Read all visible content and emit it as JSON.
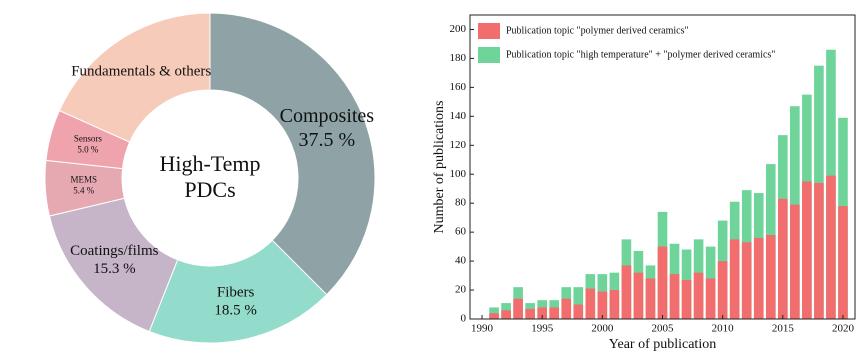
{
  "chart_data": [
    {
      "type": "pie",
      "donut": true,
      "center_text": [
        "High-Temp",
        "PDCs"
      ],
      "categories": [
        "Composites",
        "Fibers",
        "Coatings/films",
        "MEMS",
        "Sensors",
        "Fundamentals & others"
      ],
      "values": [
        37.5,
        18.5,
        15.3,
        5.4,
        5.0,
        18.3
      ],
      "value_labels": [
        "37.5 %",
        "18.5 %",
        "15.3 %",
        "5.4 %",
        "5.0 %",
        null
      ],
      "colors": [
        "#8fa3a6",
        "#93dccb",
        "#c6b4c9",
        "#e7a9b1",
        "#eea3ad",
        "#f6cbb9"
      ]
    },
    {
      "type": "bar",
      "barmode": "overlay",
      "x": [
        1991,
        1992,
        1993,
        1994,
        1995,
        1996,
        1997,
        1998,
        1999,
        2000,
        2001,
        2002,
        2003,
        2004,
        2005,
        2006,
        2007,
        2008,
        2009,
        2010,
        2011,
        2012,
        2013,
        2014,
        2015,
        2016,
        2017,
        2018,
        2019,
        2020
      ],
      "series": [
        {
          "name": "Publication topic \"high temperature\" + \"polymer derived ceramics\"",
          "color": "#6fd49a",
          "values": [
            8,
            11,
            22,
            11,
            13,
            13,
            22,
            22,
            31,
            31,
            32,
            55,
            47,
            37,
            74,
            52,
            48,
            55,
            50,
            68,
            81,
            89,
            87,
            107,
            127,
            147,
            155,
            175,
            186,
            139
          ]
        },
        {
          "name": "Publication topic \"polymer derived ceramics\"",
          "color": "#f26d6d",
          "values": [
            4,
            6,
            14,
            7,
            8,
            8,
            14,
            10,
            21,
            19,
            20,
            37,
            32,
            28,
            50,
            31,
            27,
            32,
            28,
            40,
            55,
            53,
            56,
            58,
            83,
            79,
            95,
            94,
            99,
            78
          ]
        }
      ],
      "xlim": [
        1989,
        2021
      ],
      "xticks": [
        1990,
        1995,
        2000,
        2005,
        2010,
        2015,
        2020
      ],
      "ylim": [
        0,
        210
      ],
      "yticks": [
        0,
        20,
        40,
        60,
        80,
        100,
        120,
        140,
        160,
        180,
        200
      ],
      "xlabel": "Year of publication",
      "ylabel": "Number of publications",
      "legend": "upper left"
    }
  ]
}
